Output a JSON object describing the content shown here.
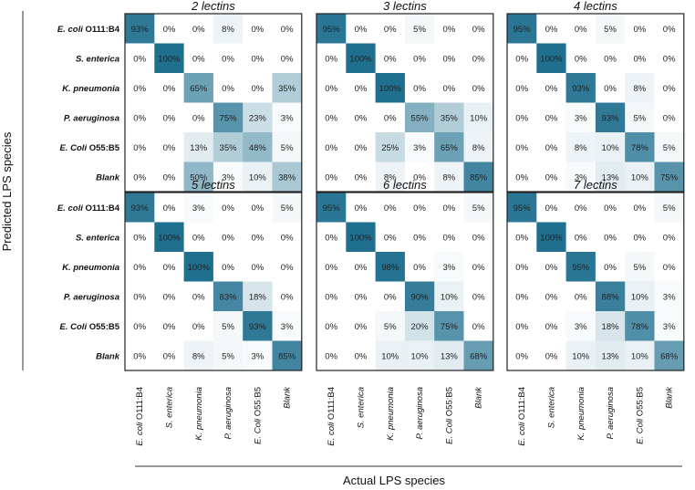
{
  "chart_data": {
    "type": "heatmap",
    "ylabel": "Predicted LPS species",
    "xlabel": "Actual LPS species",
    "row_labels": [
      {
        "a": "E. coli",
        "b": " O111:B4"
      },
      {
        "a": "S. enterica",
        "b": ""
      },
      {
        "a": "K. pneumonia",
        "b": ""
      },
      {
        "a": "P. aeruginosa",
        "b": ""
      },
      {
        "a": "E. Coli",
        "b": " O55:B5"
      },
      {
        "a": "Blank",
        "b": ""
      }
    ],
    "col_labels": [
      {
        "a": "E. coli",
        "b": " O111:B4"
      },
      {
        "a": "S. enterica",
        "b": ""
      },
      {
        "a": "K. pneumonia",
        "b": ""
      },
      {
        "a": "P. aeruginosa",
        "b": ""
      },
      {
        "a": "E. Coli",
        "b": " O55:B5"
      },
      {
        "a": "Blank",
        "b": ""
      }
    ],
    "value_unit": "%",
    "value_range": [
      0,
      100
    ],
    "panels": [
      {
        "title": "2 lectins",
        "matrix": [
          [
            93,
            0,
            0,
            8,
            0,
            0
          ],
          [
            0,
            100,
            0,
            0,
            0,
            0
          ],
          [
            0,
            0,
            65,
            0,
            0,
            35
          ],
          [
            0,
            0,
            0,
            75,
            23,
            3
          ],
          [
            0,
            0,
            13,
            35,
            48,
            5
          ],
          [
            0,
            0,
            50,
            3,
            10,
            38
          ]
        ]
      },
      {
        "title": "3 lectins",
        "matrix": [
          [
            95,
            0,
            0,
            5,
            0,
            0
          ],
          [
            0,
            100,
            0,
            0,
            0,
            0
          ],
          [
            0,
            0,
            100,
            0,
            0,
            0
          ],
          [
            0,
            0,
            0,
            55,
            35,
            10
          ],
          [
            0,
            0,
            25,
            3,
            65,
            8
          ],
          [
            0,
            0,
            8,
            0,
            8,
            85
          ]
        ]
      },
      {
        "title": "4 lectins",
        "matrix": [
          [
            95,
            0,
            0,
            5,
            0,
            0
          ],
          [
            0,
            100,
            0,
            0,
            0,
            0
          ],
          [
            0,
            0,
            93,
            0,
            8,
            0
          ],
          [
            0,
            0,
            3,
            93,
            5,
            0
          ],
          [
            0,
            0,
            8,
            10,
            78,
            5
          ],
          [
            0,
            0,
            3,
            13,
            10,
            75
          ]
        ]
      },
      {
        "title": "5 lectins",
        "matrix": [
          [
            93,
            0,
            3,
            0,
            0,
            5
          ],
          [
            0,
            100,
            0,
            0,
            0,
            0
          ],
          [
            0,
            0,
            100,
            0,
            0,
            0
          ],
          [
            0,
            0,
            0,
            83,
            18,
            0
          ],
          [
            0,
            0,
            0,
            5,
            93,
            3
          ],
          [
            0,
            0,
            8,
            5,
            3,
            85
          ]
        ]
      },
      {
        "title": "6 lectins",
        "matrix": [
          [
            95,
            0,
            0,
            0,
            0,
            5
          ],
          [
            0,
            100,
            0,
            0,
            0,
            0
          ],
          [
            0,
            0,
            98,
            0,
            3,
            0
          ],
          [
            0,
            0,
            0,
            90,
            10,
            0
          ],
          [
            0,
            0,
            5,
            20,
            75,
            0
          ],
          [
            0,
            0,
            10,
            10,
            13,
            68
          ]
        ]
      },
      {
        "title": "7 lectins",
        "matrix": [
          [
            95,
            0,
            0,
            0,
            0,
            5
          ],
          [
            0,
            100,
            0,
            0,
            0,
            0
          ],
          [
            0,
            0,
            95,
            0,
            5,
            0
          ],
          [
            0,
            0,
            0,
            88,
            10,
            3
          ],
          [
            0,
            0,
            3,
            18,
            78,
            3
          ],
          [
            0,
            0,
            10,
            13,
            10,
            68
          ]
        ]
      }
    ],
    "colors": {
      "low": "#ffffff",
      "high": "#1f6f8f",
      "text": "#222222"
    }
  }
}
